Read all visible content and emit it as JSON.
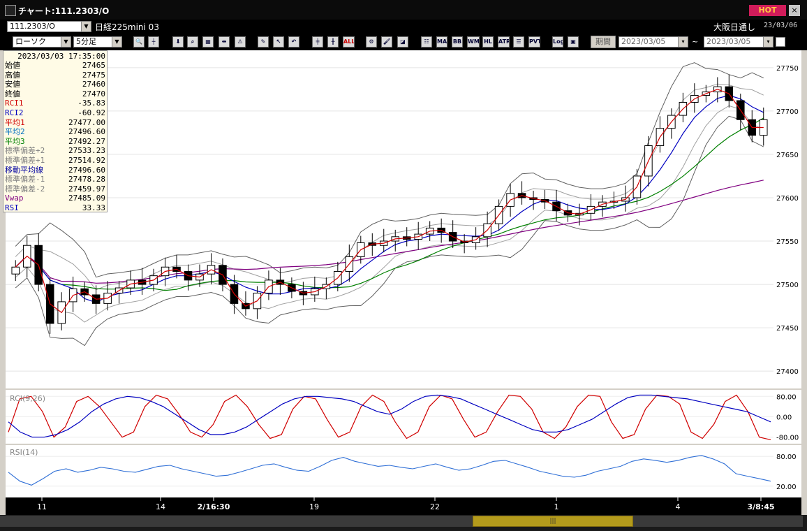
{
  "window": {
    "title": "チャート:111.2303/O",
    "hot_label": "HOT",
    "close_label": "×"
  },
  "toolbar1": {
    "symbol": "111.2303/O",
    "instrument_name": "日経225mini 03",
    "exchange": "大阪日通し",
    "date": "23/03/06"
  },
  "toolbar2": {
    "chart_type": "ローソク",
    "interval": "5分足",
    "period_label": "期間",
    "date_from": "2023/03/05",
    "tilde": "~",
    "date_to": "2023/03/05",
    "indicator_buttons": [
      "MA",
      "BB",
      "WMA",
      "HL",
      "ATR",
      "PVT",
      "Log"
    ],
    "all_label": "ALL"
  },
  "ohlc_panel": {
    "timestamp": "2023/03/03 17:35:00",
    "rows": [
      {
        "label": "始値",
        "value": "27465",
        "color": "#000000"
      },
      {
        "label": "高値",
        "value": "27475",
        "color": "#000000"
      },
      {
        "label": "安値",
        "value": "27460",
        "color": "#000000"
      },
      {
        "label": "終値",
        "value": "27470",
        "color": "#000000"
      },
      {
        "label": "RCI1",
        "value": "-35.83",
        "color": "#d00000"
      },
      {
        "label": "RCI2",
        "value": "-60.92",
        "color": "#0000c0"
      },
      {
        "label": "平均1",
        "value": "27477.00",
        "color": "#d00000"
      },
      {
        "label": "平均2",
        "value": "27496.60",
        "color": "#0070c0"
      },
      {
        "label": "平均3",
        "value": "27492.27",
        "color": "#008000"
      },
      {
        "label": "標準偏差+2",
        "value": "27533.23",
        "color": "#808080"
      },
      {
        "label": "標準偏差+1",
        "value": "27514.92",
        "color": "#808080"
      },
      {
        "label": "移動平均線",
        "value": "27496.60",
        "color": "#0000a0"
      },
      {
        "label": "標準偏差-1",
        "value": "27478.28",
        "color": "#808080"
      },
      {
        "label": "標準偏差-2",
        "value": "27459.97",
        "color": "#808080"
      },
      {
        "label": "Vwap",
        "value": "27485.09",
        "color": "#800080"
      },
      {
        "label": "RSI",
        "value": "33.33",
        "color": "#0000c0"
      }
    ]
  },
  "chart_data": [
    {
      "type": "candlestick",
      "ylim": [
        27380,
        27770
      ],
      "y_ticks": [
        "27750",
        "27700",
        "27650",
        "27600",
        "27550",
        "27500",
        "27450",
        "27400"
      ],
      "x_ticks": [
        "11",
        "14",
        "2/16:30",
        "19",
        "22",
        "1",
        "4",
        "3/8:45"
      ],
      "series": [
        {
          "name": "平均1",
          "color": "#d00000"
        },
        {
          "name": "平均2",
          "color": "#0000c0"
        },
        {
          "name": "平均3",
          "color": "#008000"
        },
        {
          "name": "Vwap",
          "color": "#800080"
        },
        {
          "name": "標準偏差",
          "color": "#505050"
        }
      ],
      "close_approx": [
        27520,
        27545,
        27500,
        27455,
        27480,
        27495,
        27488,
        27478,
        27490,
        27496,
        27505,
        27500,
        27510,
        27520,
        27515,
        27505,
        27512,
        27522,
        27500,
        27478,
        27472,
        27490,
        27505,
        27500,
        27492,
        27488,
        27495,
        27500,
        27515,
        27532,
        27548,
        27545,
        27550,
        27555,
        27552,
        27558,
        27565,
        27560,
        27550,
        27548,
        27555,
        27570,
        27590,
        27605,
        27600,
        27598,
        27595,
        27585,
        27580,
        27582,
        27590,
        27595,
        27596,
        27600,
        27625,
        27660,
        27680,
        27695,
        27710,
        27718,
        27722,
        27728,
        27712,
        27690,
        27672,
        27690
      ]
    },
    {
      "type": "line",
      "title": "RCI(9,26)",
      "ylim": [
        -100,
        100
      ],
      "y_ticks": [
        "80.00",
        "0.00",
        "-80.00"
      ],
      "series": [
        {
          "name": "RCI1",
          "color": "#d00000",
          "values": [
            -60,
            70,
            80,
            20,
            -80,
            -40,
            60,
            80,
            40,
            -20,
            -80,
            -60,
            40,
            85,
            70,
            10,
            -60,
            -80,
            -30,
            60,
            85,
            40,
            -30,
            -85,
            -70,
            30,
            80,
            70,
            -10,
            -80,
            -60,
            40,
            85,
            60,
            -20,
            -85,
            -60,
            40,
            85,
            70,
            -10,
            -80,
            -60,
            20,
            85,
            80,
            30,
            -60,
            -85,
            -40,
            40,
            85,
            80,
            -20,
            -85,
            -70,
            30,
            85,
            80,
            50,
            -60,
            -85,
            -30,
            60,
            85,
            20,
            -80,
            -90
          ]
        },
        {
          "name": "RCI2",
          "color": "#0000c0",
          "values": [
            -20,
            -60,
            -80,
            -80,
            -70,
            -50,
            -20,
            20,
            50,
            70,
            80,
            75,
            60,
            40,
            10,
            -20,
            -50,
            -70,
            -70,
            -60,
            -40,
            -10,
            20,
            50,
            70,
            80,
            80,
            75,
            70,
            60,
            40,
            20,
            10,
            30,
            60,
            80,
            85,
            80,
            70,
            50,
            30,
            10,
            -10,
            -30,
            -50,
            -60,
            -60,
            -50,
            -30,
            -10,
            20,
            50,
            75,
            85,
            85,
            80,
            75,
            70,
            60,
            50,
            40,
            30,
            20,
            0,
            -20
          ]
        }
      ]
    },
    {
      "type": "line",
      "title": "RSI(14)",
      "ylim": [
        0,
        100
      ],
      "y_ticks": [
        "80.00",
        "20.00"
      ],
      "series": [
        {
          "name": "RSI",
          "color": "#2f6fd6",
          "values": [
            48,
            30,
            22,
            35,
            50,
            55,
            48,
            52,
            58,
            55,
            50,
            48,
            54,
            60,
            62,
            55,
            50,
            45,
            40,
            42,
            48,
            55,
            62,
            65,
            58,
            52,
            50,
            60,
            72,
            78,
            70,
            65,
            60,
            62,
            58,
            55,
            60,
            65,
            58,
            52,
            55,
            62,
            70,
            72,
            65,
            58,
            50,
            45,
            40,
            38,
            42,
            50,
            55,
            60,
            70,
            75,
            72,
            68,
            72,
            78,
            82,
            75,
            65,
            45,
            40,
            35,
            30
          ]
        }
      ]
    }
  ]
}
